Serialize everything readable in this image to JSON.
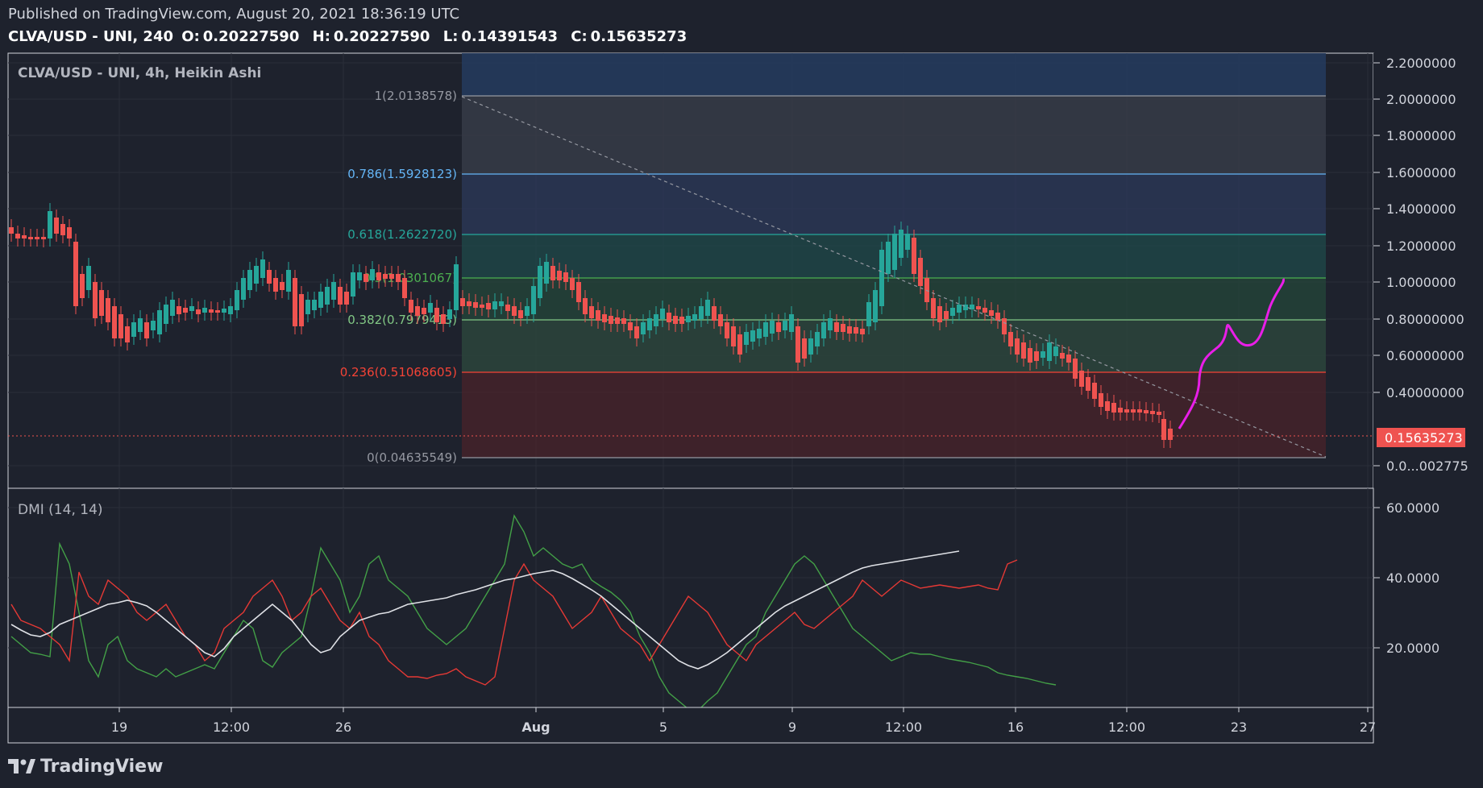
{
  "header": {
    "published": "Published on TradingView.com, August 20, 2021 18:36:19 UTC",
    "symbol": "CLVA/USD - UNI, 240",
    "o_label": "O:",
    "o_value": "0.20227590",
    "h_label": "H:",
    "h_value": "0.20227590",
    "l_label": "L:",
    "l_value": "0.14391543",
    "c_label": "C:",
    "c_value": "0.15635273"
  },
  "main_pane": {
    "legend": "CLVA/USD - UNI, 4h, Heikin Ashi",
    "last_price_label": "0.15635273",
    "price_axis_labels": [
      "2.2000000",
      "2.0000000",
      "1.8000000",
      "1.6000000",
      "1.4000000",
      "1.2000000",
      "1.0000000",
      "0.80000000",
      "0.60000000",
      "0.40000000",
      "0.0...002775"
    ]
  },
  "fib_levels": [
    {
      "label": "1(2.0138578)",
      "color": "#9598a1"
    },
    {
      "label": "0.786(1.5928123)",
      "color": "#64b5f6"
    },
    {
      "label": "0.618(1.2622720)",
      "color": "#26a69a"
    },
    {
      "label": "0.5(1.0301067)",
      "color": "#4caf50"
    },
    {
      "label": "0.382(0.7979413)",
      "color": "#81c784"
    },
    {
      "label": "0.236(0.51068605)",
      "color": "#f44336"
    },
    {
      "label": "0(0.04635549)",
      "color": "#9598a1"
    }
  ],
  "dmi_pane": {
    "legend": "DMI (14, 14)",
    "axis_labels": [
      "60.0000",
      "40.0000",
      "20.0000"
    ]
  },
  "time_axis_labels": [
    "19",
    "12:00",
    "26",
    "Aug",
    "5",
    "9",
    "12:00",
    "16",
    "12:00",
    "23",
    "27"
  ],
  "logo": {
    "text": "TradingView"
  },
  "colors": {
    "background": "#1e222d",
    "candle_up": "#26a69a",
    "candle_down": "#ef5350",
    "plus_di": "#43a047",
    "minus_di": "#e53935",
    "adx": "#dfe1e6",
    "projection": "#e91ee8"
  }
}
